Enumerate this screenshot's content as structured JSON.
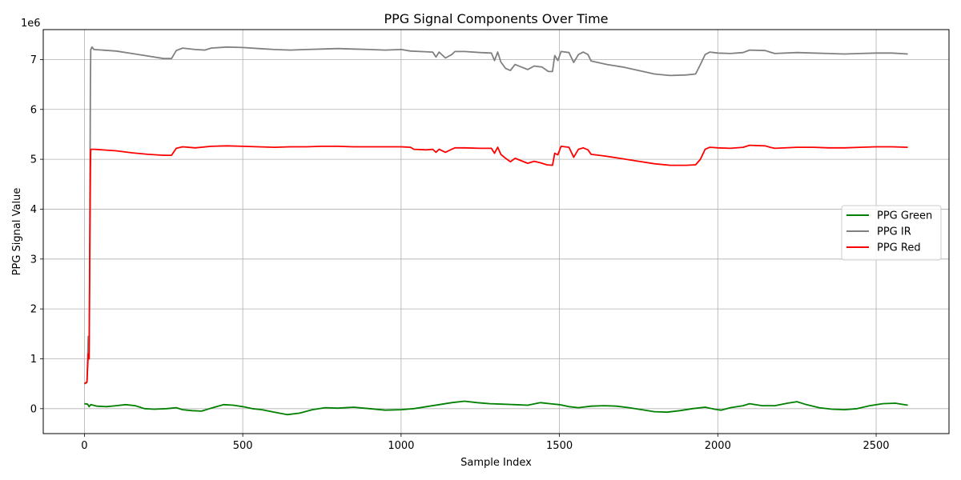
{
  "chart_data": {
    "type": "line",
    "title": "PPG Signal Components Over Time",
    "xlabel": "Sample Index",
    "ylabel": "PPG Signal Value",
    "y_offset_label": "1e6",
    "xlim": [
      -130,
      2730
    ],
    "ylim": [
      -500000,
      7600000
    ],
    "x_ticks": [
      0,
      500,
      1000,
      1500,
      2000,
      2500
    ],
    "y_ticks": [
      0,
      1000000,
      2000000,
      3000000,
      4000000,
      5000000,
      6000000,
      7000000
    ],
    "y_tick_labels": [
      "0",
      "1",
      "2",
      "3",
      "4",
      "5",
      "6",
      "7"
    ],
    "grid": true,
    "legend_position": "center-right",
    "series": [
      {
        "name": "PPG Green",
        "color": "#008000",
        "points": [
          [
            0,
            100000
          ],
          [
            10,
            90000
          ],
          [
            15,
            40000
          ],
          [
            20,
            80000
          ],
          [
            40,
            50000
          ],
          [
            70,
            40000
          ],
          [
            100,
            60000
          ],
          [
            130,
            80000
          ],
          [
            160,
            60000
          ],
          [
            190,
            0
          ],
          [
            220,
            -10000
          ],
          [
            260,
            0
          ],
          [
            290,
            20000
          ],
          [
            310,
            -20000
          ],
          [
            340,
            -40000
          ],
          [
            370,
            -50000
          ],
          [
            400,
            10000
          ],
          [
            440,
            80000
          ],
          [
            470,
            70000
          ],
          [
            500,
            40000
          ],
          [
            530,
            0
          ],
          [
            560,
            -20000
          ],
          [
            600,
            -70000
          ],
          [
            640,
            -120000
          ],
          [
            680,
            -90000
          ],
          [
            720,
            -20000
          ],
          [
            760,
            20000
          ],
          [
            800,
            10000
          ],
          [
            850,
            30000
          ],
          [
            900,
            0
          ],
          [
            950,
            -30000
          ],
          [
            1000,
            -20000
          ],
          [
            1040,
            0
          ],
          [
            1080,
            40000
          ],
          [
            1120,
            80000
          ],
          [
            1160,
            120000
          ],
          [
            1200,
            150000
          ],
          [
            1240,
            120000
          ],
          [
            1280,
            100000
          ],
          [
            1320,
            90000
          ],
          [
            1360,
            80000
          ],
          [
            1400,
            70000
          ],
          [
            1440,
            120000
          ],
          [
            1470,
            100000
          ],
          [
            1500,
            80000
          ],
          [
            1530,
            40000
          ],
          [
            1560,
            20000
          ],
          [
            1600,
            50000
          ],
          [
            1640,
            60000
          ],
          [
            1680,
            50000
          ],
          [
            1720,
            20000
          ],
          [
            1760,
            -20000
          ],
          [
            1800,
            -60000
          ],
          [
            1840,
            -70000
          ],
          [
            1880,
            -40000
          ],
          [
            1920,
            0
          ],
          [
            1960,
            30000
          ],
          [
            1990,
            -10000
          ],
          [
            2010,
            -30000
          ],
          [
            2040,
            20000
          ],
          [
            2080,
            60000
          ],
          [
            2100,
            100000
          ],
          [
            2140,
            60000
          ],
          [
            2180,
            60000
          ],
          [
            2220,
            110000
          ],
          [
            2250,
            140000
          ],
          [
            2280,
            80000
          ],
          [
            2320,
            20000
          ],
          [
            2360,
            -10000
          ],
          [
            2400,
            -20000
          ],
          [
            2440,
            0
          ],
          [
            2480,
            60000
          ],
          [
            2520,
            100000
          ],
          [
            2560,
            110000
          ],
          [
            2600,
            70000
          ]
        ]
      },
      {
        "name": "PPG IR",
        "color": "#808080",
        "points": [
          [
            0,
            500000
          ],
          [
            8,
            520000
          ],
          [
            12,
            1450000
          ],
          [
            15,
            1000000
          ],
          [
            17,
            3500000
          ],
          [
            19,
            6500000
          ],
          [
            20,
            7200000
          ],
          [
            24,
            7250000
          ],
          [
            30,
            7200000
          ],
          [
            100,
            7170000
          ],
          [
            150,
            7120000
          ],
          [
            200,
            7070000
          ],
          [
            250,
            7020000
          ],
          [
            275,
            7020000
          ],
          [
            290,
            7180000
          ],
          [
            310,
            7230000
          ],
          [
            350,
            7200000
          ],
          [
            380,
            7190000
          ],
          [
            400,
            7230000
          ],
          [
            450,
            7250000
          ],
          [
            500,
            7240000
          ],
          [
            550,
            7220000
          ],
          [
            600,
            7200000
          ],
          [
            650,
            7190000
          ],
          [
            700,
            7200000
          ],
          [
            750,
            7210000
          ],
          [
            800,
            7220000
          ],
          [
            850,
            7210000
          ],
          [
            900,
            7200000
          ],
          [
            950,
            7190000
          ],
          [
            1000,
            7200000
          ],
          [
            1030,
            7170000
          ],
          [
            1060,
            7160000
          ],
          [
            1100,
            7150000
          ],
          [
            1110,
            7050000
          ],
          [
            1120,
            7150000
          ],
          [
            1140,
            7030000
          ],
          [
            1160,
            7100000
          ],
          [
            1170,
            7160000
          ],
          [
            1200,
            7160000
          ],
          [
            1250,
            7140000
          ],
          [
            1285,
            7130000
          ],
          [
            1295,
            6980000
          ],
          [
            1305,
            7150000
          ],
          [
            1315,
            6950000
          ],
          [
            1330,
            6820000
          ],
          [
            1345,
            6780000
          ],
          [
            1360,
            6900000
          ],
          [
            1380,
            6850000
          ],
          [
            1400,
            6800000
          ],
          [
            1420,
            6870000
          ],
          [
            1445,
            6850000
          ],
          [
            1465,
            6760000
          ],
          [
            1478,
            6760000
          ],
          [
            1485,
            7080000
          ],
          [
            1495,
            6980000
          ],
          [
            1505,
            7160000
          ],
          [
            1530,
            7140000
          ],
          [
            1545,
            6940000
          ],
          [
            1560,
            7100000
          ],
          [
            1575,
            7150000
          ],
          [
            1590,
            7100000
          ],
          [
            1600,
            6970000
          ],
          [
            1650,
            6900000
          ],
          [
            1700,
            6850000
          ],
          [
            1750,
            6780000
          ],
          [
            1800,
            6710000
          ],
          [
            1850,
            6680000
          ],
          [
            1900,
            6690000
          ],
          [
            1930,
            6710000
          ],
          [
            1945,
            6900000
          ],
          [
            1960,
            7100000
          ],
          [
            1975,
            7150000
          ],
          [
            2000,
            7130000
          ],
          [
            2040,
            7120000
          ],
          [
            2080,
            7140000
          ],
          [
            2100,
            7190000
          ],
          [
            2150,
            7180000
          ],
          [
            2165,
            7150000
          ],
          [
            2180,
            7120000
          ],
          [
            2250,
            7140000
          ],
          [
            2300,
            7130000
          ],
          [
            2350,
            7120000
          ],
          [
            2400,
            7110000
          ],
          [
            2450,
            7120000
          ],
          [
            2500,
            7130000
          ],
          [
            2550,
            7130000
          ],
          [
            2600,
            7110000
          ]
        ]
      },
      {
        "name": "PPG Red",
        "color": "#ff0000",
        "points": [
          [
            0,
            500000
          ],
          [
            8,
            540000
          ],
          [
            12,
            1100000
          ],
          [
            15,
            1000000
          ],
          [
            17,
            3000000
          ],
          [
            19,
            4800000
          ],
          [
            20,
            5200000
          ],
          [
            30,
            5200000
          ],
          [
            100,
            5170000
          ],
          [
            150,
            5130000
          ],
          [
            200,
            5100000
          ],
          [
            250,
            5080000
          ],
          [
            275,
            5080000
          ],
          [
            290,
            5220000
          ],
          [
            310,
            5250000
          ],
          [
            350,
            5230000
          ],
          [
            400,
            5260000
          ],
          [
            450,
            5270000
          ],
          [
            500,
            5260000
          ],
          [
            550,
            5250000
          ],
          [
            600,
            5240000
          ],
          [
            650,
            5250000
          ],
          [
            700,
            5250000
          ],
          [
            750,
            5260000
          ],
          [
            800,
            5260000
          ],
          [
            850,
            5250000
          ],
          [
            900,
            5250000
          ],
          [
            950,
            5250000
          ],
          [
            1000,
            5250000
          ],
          [
            1030,
            5240000
          ],
          [
            1040,
            5200000
          ],
          [
            1080,
            5190000
          ],
          [
            1100,
            5200000
          ],
          [
            1110,
            5140000
          ],
          [
            1120,
            5200000
          ],
          [
            1140,
            5140000
          ],
          [
            1160,
            5200000
          ],
          [
            1170,
            5230000
          ],
          [
            1200,
            5230000
          ],
          [
            1250,
            5220000
          ],
          [
            1285,
            5220000
          ],
          [
            1295,
            5120000
          ],
          [
            1305,
            5240000
          ],
          [
            1315,
            5100000
          ],
          [
            1330,
            5020000
          ],
          [
            1345,
            4950000
          ],
          [
            1360,
            5020000
          ],
          [
            1380,
            4970000
          ],
          [
            1400,
            4920000
          ],
          [
            1420,
            4960000
          ],
          [
            1440,
            4930000
          ],
          [
            1460,
            4890000
          ],
          [
            1478,
            4880000
          ],
          [
            1485,
            5120000
          ],
          [
            1495,
            5090000
          ],
          [
            1505,
            5260000
          ],
          [
            1530,
            5240000
          ],
          [
            1545,
            5040000
          ],
          [
            1560,
            5200000
          ],
          [
            1575,
            5230000
          ],
          [
            1590,
            5190000
          ],
          [
            1600,
            5100000
          ],
          [
            1650,
            5060000
          ],
          [
            1700,
            5010000
          ],
          [
            1750,
            4960000
          ],
          [
            1800,
            4910000
          ],
          [
            1850,
            4880000
          ],
          [
            1900,
            4880000
          ],
          [
            1930,
            4890000
          ],
          [
            1945,
            5000000
          ],
          [
            1960,
            5200000
          ],
          [
            1975,
            5240000
          ],
          [
            2000,
            5230000
          ],
          [
            2040,
            5220000
          ],
          [
            2080,
            5240000
          ],
          [
            2100,
            5280000
          ],
          [
            2150,
            5270000
          ],
          [
            2165,
            5240000
          ],
          [
            2180,
            5220000
          ],
          [
            2250,
            5240000
          ],
          [
            2300,
            5240000
          ],
          [
            2350,
            5230000
          ],
          [
            2400,
            5230000
          ],
          [
            2450,
            5240000
          ],
          [
            2500,
            5250000
          ],
          [
            2550,
            5250000
          ],
          [
            2600,
            5240000
          ]
        ]
      }
    ]
  }
}
